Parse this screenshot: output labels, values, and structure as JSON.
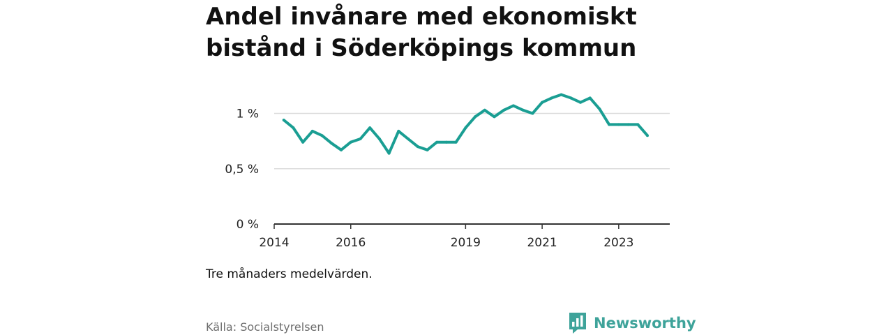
{
  "title": "Andel invånare med ekonomiskt bistånd i Söderköpings kommun",
  "note": "Tre månaders medelvärden.",
  "source": "Källa: Socialstyrelsen",
  "brand": "Newsworthy",
  "colors": {
    "line": "#1a9e93",
    "grid": "#dcdcdc",
    "axis": "#333333",
    "brand": "#3ea39a"
  },
  "chart_data": {
    "type": "line",
    "title": "Andel invånare med ekonomiskt bistånd i Söderköpings kommun",
    "xlabel": "",
    "ylabel": "",
    "ylim": [
      0,
      1.3
    ],
    "xlim": [
      "2014-01",
      "2024-05"
    ],
    "y_ticks": [
      {
        "value": 0,
        "label": "0 %"
      },
      {
        "value": 0.5,
        "label": "0,5 %"
      },
      {
        "value": 1,
        "label": "1 %"
      }
    ],
    "x_ticks": [
      "2014",
      "2016",
      "2019",
      "2021",
      "2023"
    ],
    "grid": "horizontal",
    "series": [
      {
        "points": [
          {
            "x": "2014-04",
            "y": 0.94
          },
          {
            "x": "2014-07",
            "y": 0.87
          },
          {
            "x": "2014-10",
            "y": 0.74
          },
          {
            "x": "2015-01",
            "y": 0.84
          },
          {
            "x": "2015-04",
            "y": 0.8
          },
          {
            "x": "2015-07",
            "y": 0.73
          },
          {
            "x": "2015-10",
            "y": 0.67
          },
          {
            "x": "2016-01",
            "y": 0.74
          },
          {
            "x": "2016-04",
            "y": 0.77
          },
          {
            "x": "2016-07",
            "y": 0.87
          },
          {
            "x": "2016-10",
            "y": 0.77
          },
          {
            "x": "2017-01",
            "y": 0.64
          },
          {
            "x": "2017-04",
            "y": 0.84
          },
          {
            "x": "2017-07",
            "y": 0.77
          },
          {
            "x": "2017-10",
            "y": 0.7
          },
          {
            "x": "2018-01",
            "y": 0.67
          },
          {
            "x": "2018-04",
            "y": 0.74
          },
          {
            "x": "2018-07",
            "y": 0.74
          },
          {
            "x": "2018-10",
            "y": 0.74
          },
          {
            "x": "2019-01",
            "y": 0.87
          },
          {
            "x": "2019-04",
            "y": 0.97
          },
          {
            "x": "2019-07",
            "y": 1.03
          },
          {
            "x": "2019-10",
            "y": 0.97
          },
          {
            "x": "2020-01",
            "y": 1.03
          },
          {
            "x": "2020-04",
            "y": 1.07
          },
          {
            "x": "2020-07",
            "y": 1.03
          },
          {
            "x": "2020-10",
            "y": 1.0
          },
          {
            "x": "2021-01",
            "y": 1.1
          },
          {
            "x": "2021-04",
            "y": 1.14
          },
          {
            "x": "2021-07",
            "y": 1.17
          },
          {
            "x": "2021-10",
            "y": 1.14
          },
          {
            "x": "2022-01",
            "y": 1.1
          },
          {
            "x": "2022-04",
            "y": 1.14
          },
          {
            "x": "2022-07",
            "y": 1.04
          },
          {
            "x": "2022-10",
            "y": 0.9
          },
          {
            "x": "2023-01",
            "y": 0.9
          },
          {
            "x": "2023-04",
            "y": 0.9
          },
          {
            "x": "2023-07",
            "y": 0.9
          },
          {
            "x": "2023-10",
            "y": 0.8
          }
        ]
      }
    ]
  }
}
